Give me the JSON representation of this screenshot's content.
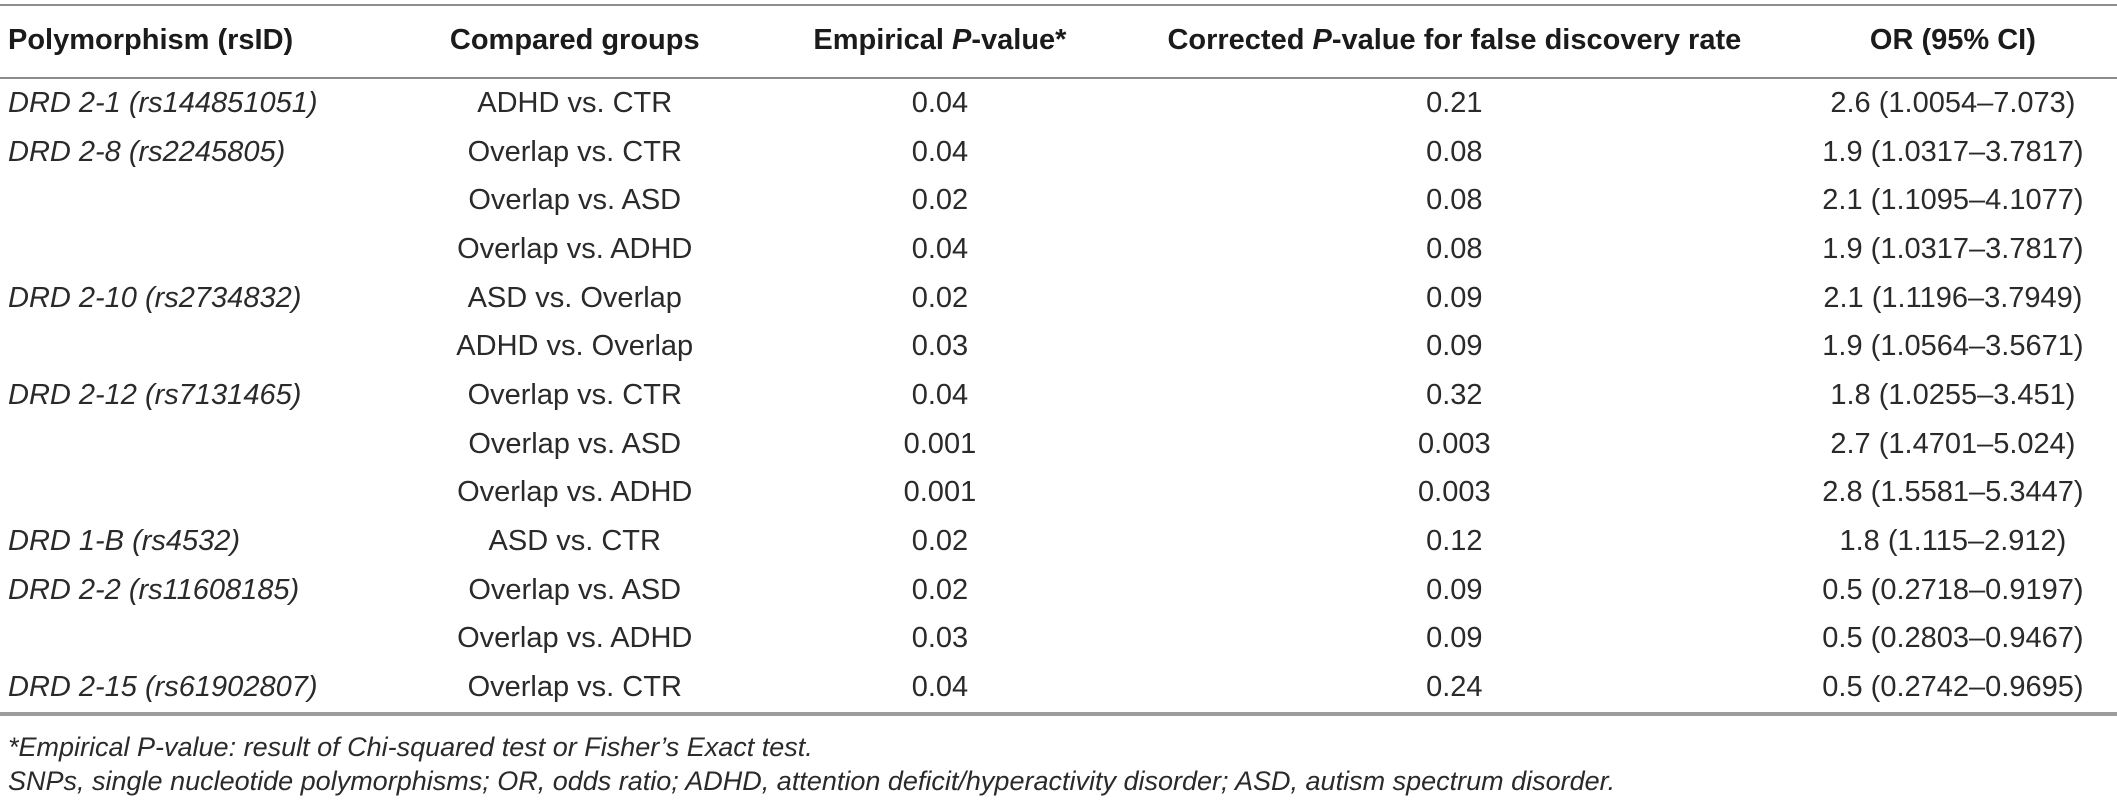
{
  "table": {
    "columns": [
      {
        "name": "polymorphism",
        "align": "left",
        "segments": [
          {
            "t": "Polymorphism (rsID)",
            "i": false
          }
        ]
      },
      {
        "name": "compared-groups",
        "align": "center",
        "segments": [
          {
            "t": "Compared groups",
            "i": false
          }
        ]
      },
      {
        "name": "empirical-p-value",
        "align": "center",
        "segments": [
          {
            "t": "Empirical ",
            "i": false
          },
          {
            "t": "P",
            "i": true
          },
          {
            "t": "-value*",
            "i": false
          }
        ]
      },
      {
        "name": "corrected-p-value",
        "align": "center",
        "segments": [
          {
            "t": "Corrected ",
            "i": false
          },
          {
            "t": "P",
            "i": true
          },
          {
            "t": "-value for false discovery rate",
            "i": false
          }
        ]
      },
      {
        "name": "or-95-ci",
        "align": "center",
        "segments": [
          {
            "t": "OR (95% CI)",
            "i": false
          }
        ]
      }
    ],
    "rows": [
      [
        "DRD 2-1 (rs144851051)",
        "ADHD vs. CTR",
        "0.04",
        "0.21",
        "2.6 (1.0054–7.073)"
      ],
      [
        "DRD 2-8 (rs2245805)",
        "Overlap vs. CTR",
        "0.04",
        "0.08",
        "1.9 (1.0317–3.7817)"
      ],
      [
        "",
        "Overlap vs. ASD",
        "0.02",
        "0.08",
        "2.1 (1.1095–4.1077)"
      ],
      [
        "",
        "Overlap vs. ADHD",
        "0.04",
        "0.08",
        "1.9 (1.0317–3.7817)"
      ],
      [
        "DRD 2-10 (rs2734832)",
        "ASD vs. Overlap",
        "0.02",
        "0.09",
        "2.1 (1.1196–3.7949)"
      ],
      [
        "",
        "ADHD vs. Overlap",
        "0.03",
        "0.09",
        "1.9 (1.0564–3.5671)"
      ],
      [
        "DRD 2-12 (rs7131465)",
        "Overlap vs. CTR",
        "0.04",
        "0.32",
        "1.8 (1.0255–3.451)"
      ],
      [
        "",
        "Overlap vs. ASD",
        "0.001",
        "0.003",
        "2.7 (1.4701–5.024)"
      ],
      [
        "",
        "Overlap vs. ADHD",
        "0.001",
        "0.003",
        "2.8 (1.5581–5.3447)"
      ],
      [
        "DRD 1-B (rs4532)",
        "ASD vs. CTR",
        "0.02",
        "0.12",
        "1.8 (1.115–2.912)"
      ],
      [
        "DRD 2-2 (rs11608185)",
        "Overlap vs. ASD",
        "0.02",
        "0.09",
        "0.5 (0.2718–0.9197)"
      ],
      [
        "",
        "Overlap vs. ADHD",
        "0.03",
        "0.09",
        "0.5 (0.2803–0.9467)"
      ],
      [
        "DRD 2-15 (rs61902807)",
        "Overlap vs. CTR",
        "0.04",
        "0.24",
        "0.5 (0.2742–0.9695)"
      ]
    ]
  },
  "footnotes": [
    "*Empirical P-value: result of Chi-squared test or Fisher’s Exact test.",
    "SNPs, single nucleotide polymorphisms; OR, odds ratio; ADHD, attention deficit/hyperactivity disorder; ASD, autism spectrum disorder."
  ],
  "colors": {
    "text": "#2a2a2a",
    "rule_top": "#8f8f8f",
    "rule_header": "#8c8c8c",
    "rule_bottom": "#9c9c9c"
  }
}
